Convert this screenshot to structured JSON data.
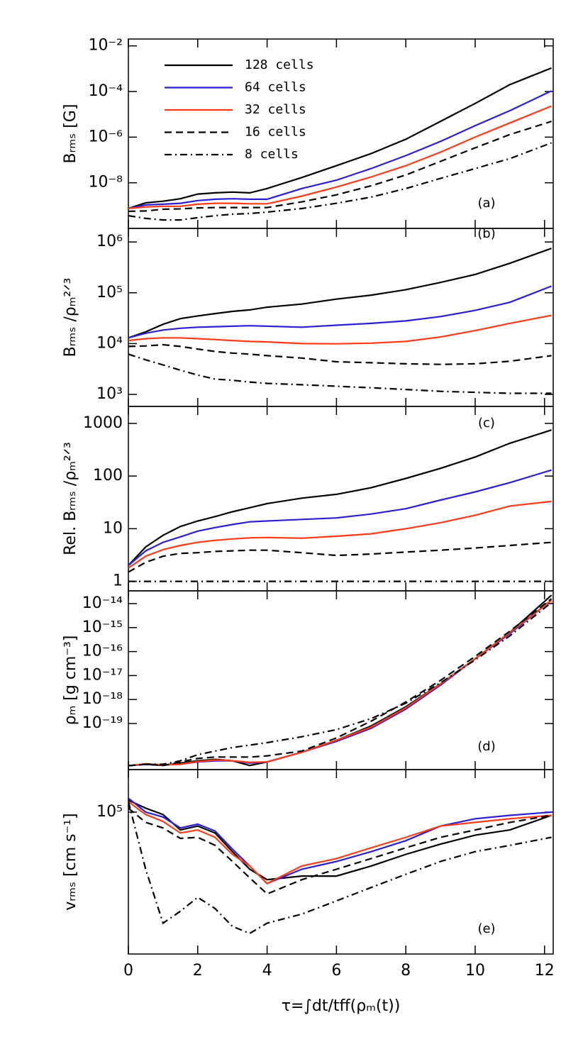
{
  "chart_data": [
    {
      "type": "line",
      "panel_label": "(a)",
      "ylabel": "Bᵣₘₛ [G]",
      "log_y": true,
      "xlim": [
        0,
        12.25
      ],
      "ylim": [
        1e-10,
        0.02
      ],
      "yticks": [
        {
          "value": 1e-08,
          "label": "10⁻⁸"
        },
        {
          "value": 1e-06,
          "label": "10⁻⁶"
        },
        {
          "value": 0.0001,
          "label": "10⁻⁴"
        },
        {
          "value": 0.01,
          "label": "10⁻²"
        }
      ],
      "x": [
        0,
        0.5,
        1,
        1.5,
        2,
        2.5,
        3,
        3.5,
        4,
        5,
        6,
        7,
        8,
        9,
        10,
        11,
        12.2
      ],
      "series": [
        {
          "name": "128 cells",
          "color": "#000000",
          "linestyle": "solid",
          "values": [
            7.5e-10,
            1.33e-09,
            1.55e-09,
            2e-09,
            3.2e-09,
            3.6e-09,
            3.9e-09,
            3.6e-09,
            5.6e-09,
            1.7e-08,
            5.6e-08,
            1.9e-07,
            8.1e-07,
            4.9e-06,
            3e-05,
            0.0002,
            0.00107
          ]
        },
        {
          "name": "64 cells",
          "color": "#2b1fd6",
          "linestyle": "solid",
          "values": [
            7.5e-10,
            1.07e-09,
            1.15e-09,
            1.26e-09,
            1.66e-09,
            1.9e-09,
            2e-09,
            1.9e-09,
            1.9e-09,
            5.6e-09,
            1.3e-08,
            4.2e-08,
            1.55e-07,
            6.5e-07,
            3.2e-06,
            1.45e-05,
            0.000107
          ]
        },
        {
          "name": "32 cells",
          "color": "#ff3a14",
          "linestyle": "solid",
          "values": [
            7.5e-10,
            8.7e-10,
            9.3e-10,
            9.3e-10,
            1.15e-09,
            1.26e-09,
            1.26e-09,
            1.2e-09,
            1.2e-09,
            2.6e-09,
            6.5e-09,
            1.8e-08,
            5.6e-08,
            2.2e-07,
            1e-06,
            4.2e-06,
            2.3e-05
          ]
        },
        {
          "name": "16 cells",
          "color": "#000000",
          "linestyle": "dashed",
          "values": [
            5.6e-10,
            5.8e-10,
            6.9e-10,
            7.2e-10,
            7.9e-10,
            8.2e-10,
            8.2e-10,
            8.2e-10,
            8.2e-10,
            1.45e-09,
            2.95e-09,
            7.4e-09,
            2.2e-08,
            8.7e-08,
            3.4e-07,
            1.3e-06,
            4.9e-06
          ]
        },
        {
          "name": "8 cells",
          "color": "#000000",
          "linestyle": "dashdot",
          "values": [
            3.6e-10,
            2.75e-10,
            2.35e-10,
            2.35e-10,
            2.95e-10,
            3.6e-10,
            4.2e-10,
            4.5e-10,
            5.2e-10,
            7.4e-10,
            1.26e-09,
            2.35e-09,
            5.6e-09,
            1.55e-08,
            4.2e-08,
            1.15e-07,
            5.6e-07
          ]
        }
      ]
    },
    {
      "type": "line",
      "panel_label": "(b)",
      "ylabel": "Bᵣₘₛ /ρₘ²ᐟ³",
      "log_y": true,
      "xlim": [
        0,
        12.25
      ],
      "ylim": [
        580,
        1850000
      ],
      "yticks": [
        {
          "value": 1000,
          "label": "10³"
        },
        {
          "value": 10000,
          "label": "10⁴"
        },
        {
          "value": 100000,
          "label": "10⁵"
        },
        {
          "value": 1000000,
          "label": "10⁶"
        }
      ],
      "x": [
        0,
        0.5,
        1,
        1.5,
        2,
        2.5,
        3,
        3.5,
        4,
        5,
        6,
        7,
        8,
        9,
        10,
        11,
        12.2
      ],
      "series": [
        {
          "color": "#000000",
          "linestyle": "solid",
          "values": [
            13000,
            17000,
            24000,
            31000,
            35000,
            39000,
            43000,
            46000,
            52000,
            60000,
            75000,
            90000,
            115000,
            160000,
            230000,
            380000,
            750000
          ]
        },
        {
          "color": "#2b1fd6",
          "linestyle": "solid",
          "values": [
            13000,
            16000,
            18500,
            20000,
            21000,
            21500,
            22000,
            22500,
            22000,
            21000,
            23000,
            25000,
            28000,
            34000,
            45000,
            65000,
            135000
          ]
        },
        {
          "color": "#ff3a14",
          "linestyle": "solid",
          "values": [
            11500,
            12500,
            13000,
            13000,
            12500,
            12000,
            11500,
            11000,
            10800,
            10000,
            9900,
            10200,
            11000,
            13500,
            18000,
            25000,
            36000
          ]
        },
        {
          "color": "#000000",
          "linestyle": "dashed",
          "values": [
            8800,
            9000,
            9500,
            8800,
            7800,
            7000,
            6500,
            6200,
            5800,
            5200,
            4400,
            4200,
            4000,
            3900,
            4000,
            4500,
            5800
          ]
        },
        {
          "color": "#000000",
          "linestyle": "dashdot",
          "values": [
            6200,
            4800,
            3800,
            3000,
            2400,
            2000,
            1900,
            1750,
            1650,
            1550,
            1450,
            1350,
            1250,
            1150,
            1100,
            1050,
            1050
          ]
        }
      ]
    },
    {
      "type": "line",
      "panel_label": "(c)",
      "ylabel": "Rel. Bᵣₘₛ /ρₘ²ᐟ³",
      "log_y": true,
      "xlim": [
        0,
        12.25
      ],
      "ylim": [
        0.66,
        2100
      ],
      "yticks": [
        1,
        10,
        100,
        1000
      ],
      "x": [
        0,
        0.5,
        1,
        1.5,
        2,
        2.5,
        3,
        3.5,
        4,
        5,
        6,
        7,
        8,
        9,
        10,
        11,
        12.2
      ],
      "series": [
        {
          "color": "#000000",
          "linestyle": "solid",
          "values": [
            2,
            4.5,
            7.5,
            11,
            14,
            17,
            21,
            25,
            30,
            38,
            45,
            60,
            90,
            140,
            230,
            420,
            750
          ]
        },
        {
          "color": "#2b1fd6",
          "linestyle": "solid",
          "values": [
            2,
            3.8,
            5.5,
            7,
            9,
            10.5,
            12,
            13.5,
            14,
            15,
            16,
            19,
            24,
            35,
            50,
            75,
            130
          ]
        },
        {
          "color": "#ff3a14",
          "linestyle": "solid",
          "values": [
            1.8,
            3,
            4,
            4.8,
            5.5,
            6,
            6.4,
            6.7,
            6.8,
            6.6,
            7.2,
            8,
            10,
            13,
            18,
            27,
            33
          ]
        },
        {
          "color": "#000000",
          "linestyle": "dashed",
          "values": [
            1.5,
            2.3,
            3,
            3.4,
            3.5,
            3.7,
            3.8,
            3.9,
            3.9,
            3.5,
            3.1,
            3.3,
            3.6,
            3.9,
            4.3,
            4.8,
            5.5
          ]
        },
        {
          "color": "#000000",
          "linestyle": "dashdot",
          "values": [
            1,
            1,
            1,
            1,
            1,
            1,
            1,
            1,
            1,
            1,
            1,
            1,
            1,
            1,
            1,
            1,
            1
          ]
        }
      ]
    },
    {
      "type": "line",
      "panel_label": "(d)",
      "ylabel": "ρₘ [g cm⁻³]",
      "log_y": true,
      "xlim": [
        0,
        12.25
      ],
      "ylim": [
        1.2e-21,
        3.4e-14
      ],
      "yticks": [
        {
          "value": 1e-19,
          "label": "10⁻¹⁹"
        },
        {
          "value": 1e-18,
          "label": "10⁻¹⁸"
        },
        {
          "value": 1e-17,
          "label": "10⁻¹⁷"
        },
        {
          "value": 1e-16,
          "label": "10⁻¹⁶"
        },
        {
          "value": 1e-15,
          "label": "10⁻¹⁵"
        },
        {
          "value": 1e-14,
          "label": "10⁻¹⁴"
        }
      ],
      "x": [
        0,
        0.5,
        1,
        1.5,
        2,
        2.5,
        3,
        3.5,
        4,
        5,
        6,
        7,
        8,
        9,
        10,
        11,
        12.2
      ],
      "series": [
        {
          "color": "#000000",
          "linestyle": "solid",
          "values": [
            1.74e-21,
            2e-21,
            1.78e-21,
            2.24e-21,
            2.8e-21,
            3.2e-21,
            2.8e-21,
            1.78e-21,
            2.5e-21,
            6.3e-21,
            2e-20,
            7.9e-20,
            5e-19,
            4.5e-18,
            5e-17,
            6.3e-16,
            2.24e-14
          ]
        },
        {
          "color": "#2b1fd6",
          "linestyle": "solid",
          "values": [
            1.74e-21,
            2e-21,
            1.9e-21,
            2e-21,
            2.5e-21,
            2.8e-21,
            2.8e-21,
            2.24e-21,
            2.5e-21,
            6.3e-21,
            1.8e-20,
            6.3e-20,
            4e-19,
            4e-18,
            5e-17,
            5.6e-16,
            1.4e-14
          ]
        },
        {
          "color": "#ff3a14",
          "linestyle": "solid",
          "values": [
            1.74e-21,
            2.1e-21,
            1.9e-21,
            2e-21,
            2.6e-21,
            3e-21,
            2.8e-21,
            2.4e-21,
            2.5e-21,
            6.3e-21,
            2e-20,
            7.1e-20,
            4.5e-19,
            4.5e-18,
            5e-17,
            6.3e-16,
            1.4e-14
          ]
        },
        {
          "color": "#000000",
          "linestyle": "dashed",
          "values": [
            1.74e-21,
            2e-21,
            1.78e-21,
            2.5e-21,
            3.5e-21,
            4e-21,
            4e-21,
            4e-21,
            4.5e-21,
            7.1e-21,
            2.5e-20,
            1.26e-19,
            7.9e-19,
            6.3e-18,
            6.3e-17,
            7.1e-16,
            1.6e-14
          ]
        },
        {
          "color": "#000000",
          "linestyle": "dashdot",
          "values": [
            1.74e-21,
            2e-21,
            2e-21,
            2.8e-21,
            5e-21,
            7.1e-21,
            1e-20,
            1.26e-20,
            1.6e-20,
            2.8e-20,
            5.6e-20,
            1.6e-19,
            7.1e-19,
            5e-18,
            4.5e-17,
            4.5e-16,
            1.12e-14
          ]
        }
      ]
    },
    {
      "type": "line",
      "panel_label": "(e)",
      "ylabel": "vᵣₘₛ [cm s⁻¹]",
      "xlabel": "τ=∫dt/tff(ρₘ(t))",
      "log_y": true,
      "xlim": [
        0,
        12.25
      ],
      "ylim": [
        17000,
        170000
      ],
      "xticks": [
        0,
        2,
        4,
        6,
        8,
        10,
        12
      ],
      "yticks": [
        {
          "value": 100000,
          "label": "10⁵"
        }
      ],
      "x": [
        0,
        0.5,
        1,
        1.5,
        2,
        2.5,
        3,
        3.5,
        4,
        5,
        6,
        7,
        8,
        9,
        10,
        11,
        12.2
      ],
      "series": [
        {
          "color": "#000000",
          "linestyle": "solid",
          "values": [
            116000,
            105000,
            97000,
            80000,
            84000,
            77000,
            61000,
            49000,
            43000,
            45000,
            45000,
            51000,
            59000,
            67000,
            75000,
            80000,
            96000
          ]
        },
        {
          "color": "#2b1fd6",
          "linestyle": "solid",
          "values": [
            119000,
            100000,
            94000,
            82000,
            86000,
            79000,
            63000,
            51000,
            41000,
            49000,
            54000,
            61000,
            70000,
            84000,
            92000,
            96000,
            100000
          ]
        },
        {
          "color": "#ff3a14",
          "linestyle": "solid",
          "values": [
            114000,
            97000,
            89000,
            77000,
            80000,
            73000,
            59000,
            51000,
            41000,
            51000,
            56000,
            64000,
            73000,
            84000,
            88000,
            92000,
            96000
          ]
        },
        {
          "color": "#000000",
          "linestyle": "dashed",
          "values": [
            105000,
            88000,
            82000,
            72000,
            73000,
            66000,
            54000,
            44000,
            36000,
            43000,
            49000,
            56000,
            64000,
            73000,
            80000,
            88000,
            96000
          ]
        },
        {
          "color": "#000000",
          "linestyle": "dashdot",
          "values": [
            114000,
            49000,
            25000,
            29000,
            34500,
            30000,
            24000,
            22000,
            25000,
            28000,
            33000,
            39000,
            46000,
            54000,
            61000,
            66000,
            73000
          ]
        }
      ]
    }
  ]
}
